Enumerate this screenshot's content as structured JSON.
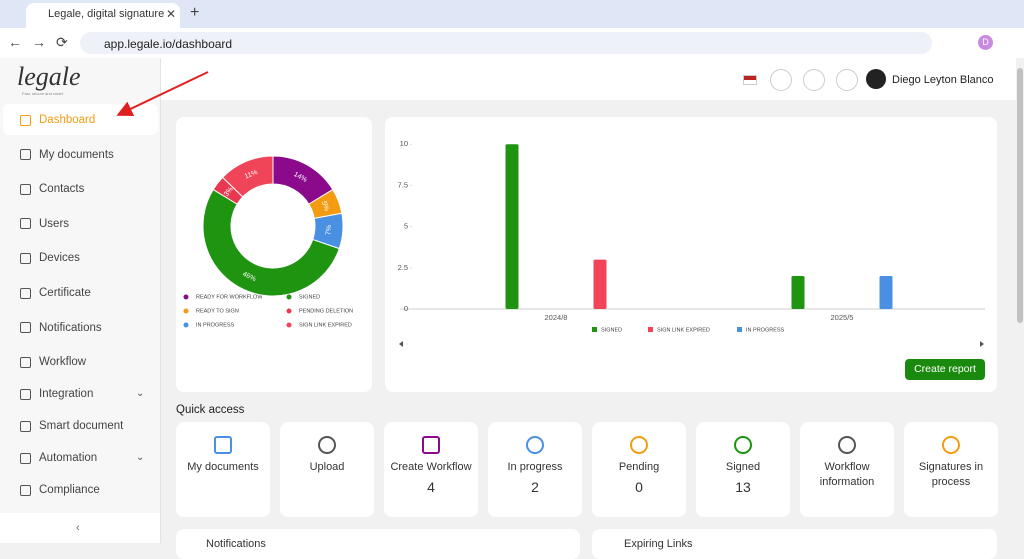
{
  "browser": {
    "tab_title": "Legale, digital signature",
    "url": "app.legale.io/dashboard",
    "profile_initial": "D"
  },
  "sidebar": {
    "logo": "legale",
    "tagline": "Fast, secure and smart",
    "nav": [
      "Dashboard",
      "My documents",
      "Contacts",
      "Users",
      "Devices",
      "Certificate",
      "Notifications",
      "Workflow",
      "Integration",
      "Smart document",
      "Automation",
      "Compliance"
    ]
  },
  "header": {
    "user_name": "Diego Leyton Blanco"
  },
  "chart_data": [
    {
      "type": "pie",
      "categories": [
        "READY FOR WORKFLOW",
        "READY TO SIGN",
        "IN PROGRESS",
        "SIGNED",
        "PENDING DELETION",
        "SIGN LINK EXPIRED"
      ],
      "values": [
        14,
        5,
        7,
        46,
        3,
        11
      ],
      "value_labels": [
        "14%",
        "5%",
        "7%",
        "46%",
        "3%",
        "11%"
      ],
      "colors": [
        "#8b0a8b",
        "#f39c12",
        "#4a90e2",
        "#1e9410",
        "#e8384f",
        "#f04458"
      ]
    },
    {
      "type": "bar",
      "categories": [
        "2024/8",
        "2025/5"
      ],
      "series": [
        {
          "name": "SIGNED",
          "color": "#1e9410",
          "values": [
            10,
            2
          ]
        },
        {
          "name": "SIGN LINK EXPIRED",
          "color": "#f04458",
          "values": [
            3,
            null
          ]
        },
        {
          "name": "IN PROGRESS",
          "color": "#4a90e2",
          "values": [
            null,
            2
          ]
        }
      ],
      "ylim": [
        0,
        10.5
      ],
      "yticks": [
        0,
        2.5,
        5,
        7.5,
        10
      ],
      "grid": false,
      "legend": "bottom"
    }
  ],
  "create_report": "Create report",
  "quick_access": {
    "title": "Quick access",
    "items": [
      {
        "label": "My documents"
      },
      {
        "label": "Upload"
      },
      {
        "label": "Create Workflow",
        "count": 4
      },
      {
        "label": "In progress",
        "count": 2
      },
      {
        "label": "Pending",
        "count": 0
      },
      {
        "label": "Signed",
        "count": 13
      },
      {
        "label": "Workflow information"
      },
      {
        "label": "Signatures in process"
      }
    ]
  },
  "bottom_cards": [
    "Notifications",
    "Expiring Links"
  ]
}
